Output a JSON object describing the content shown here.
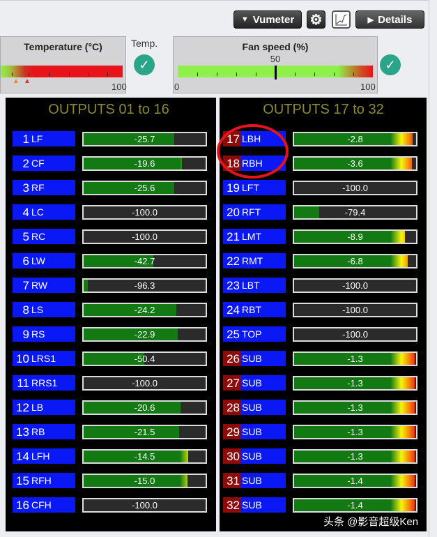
{
  "toolbar": {
    "vumeter_label": "Vumeter",
    "details_label": "Details",
    "icons": [
      "triangle-down-icon",
      "gear-icon",
      "chart-icon",
      "triangle-right-icon"
    ]
  },
  "temperature": {
    "title": "Temperature (°C)",
    "max": "100",
    "status_label": "Temp.",
    "status": "ok"
  },
  "fan": {
    "title": "Fan speed (%)",
    "value": "50",
    "min": "0",
    "max": "100",
    "status": "ok"
  },
  "colors": {
    "channel_blue": "#0a18f5",
    "channel_red": "#8b0a0a",
    "heading": "#8c8a2e",
    "meter_green": "#137a13"
  },
  "groups": [
    {
      "title": "OUTPUTS 01 to 16",
      "rows": [
        {
          "num": "1",
          "label": "LF",
          "value": "-25.7"
        },
        {
          "num": "2",
          "label": "CF",
          "value": "-19.6"
        },
        {
          "num": "3",
          "label": "RF",
          "value": "-25.6"
        },
        {
          "num": "4",
          "label": "LC",
          "value": "-100.0"
        },
        {
          "num": "5",
          "label": "RC",
          "value": "-100.0"
        },
        {
          "num": "6",
          "label": "LW",
          "value": "-42.7"
        },
        {
          "num": "7",
          "label": "RW",
          "value": "-96.3"
        },
        {
          "num": "8",
          "label": "LS",
          "value": "-24.2"
        },
        {
          "num": "9",
          "label": "RS",
          "value": "-22.9"
        },
        {
          "num": "10",
          "label": "LRS1",
          "value": "-50.4"
        },
        {
          "num": "11",
          "label": "RRS1",
          "value": "-100.0"
        },
        {
          "num": "12",
          "label": "LB",
          "value": "-20.6"
        },
        {
          "num": "13",
          "label": "RB",
          "value": "-21.5"
        },
        {
          "num": "14",
          "label": "LFH",
          "value": "-14.5"
        },
        {
          "num": "15",
          "label": "RFH",
          "value": "-15.0"
        },
        {
          "num": "16",
          "label": "CFH",
          "value": "-100.0"
        }
      ]
    },
    {
      "title": "OUTPUTS 17 to 32",
      "rows": [
        {
          "num": "17",
          "label": "LBH",
          "value": "-2.8",
          "red": true
        },
        {
          "num": "18",
          "label": "RBH",
          "value": "-3.6",
          "red": true
        },
        {
          "num": "19",
          "label": "LFT",
          "value": "-100.0"
        },
        {
          "num": "20",
          "label": "RFT",
          "value": "-79.4"
        },
        {
          "num": "21",
          "label": "LMT",
          "value": "-8.9"
        },
        {
          "num": "22",
          "label": "RMT",
          "value": "-6.8"
        },
        {
          "num": "23",
          "label": "LBT",
          "value": "-100.0"
        },
        {
          "num": "24",
          "label": "RBT",
          "value": "-100.0"
        },
        {
          "num": "25",
          "label": "TOP",
          "value": "-100.0"
        },
        {
          "num": "26",
          "label": "SUB",
          "value": "-1.3",
          "red": true
        },
        {
          "num": "27",
          "label": "SUB",
          "value": "-1.3",
          "red": true
        },
        {
          "num": "28",
          "label": "SUB",
          "value": "-1.3",
          "red": true
        },
        {
          "num": "29",
          "label": "SUB",
          "value": "-1.3",
          "red": true
        },
        {
          "num": "30",
          "label": "SUB",
          "value": "-1.3",
          "red": true
        },
        {
          "num": "31",
          "label": "SUB",
          "value": "-1.4",
          "red": true
        },
        {
          "num": "32",
          "label": "SUB",
          "value": "-1.4",
          "red": true
        }
      ]
    }
  ],
  "watermark": "头条 @影音超级Ken"
}
